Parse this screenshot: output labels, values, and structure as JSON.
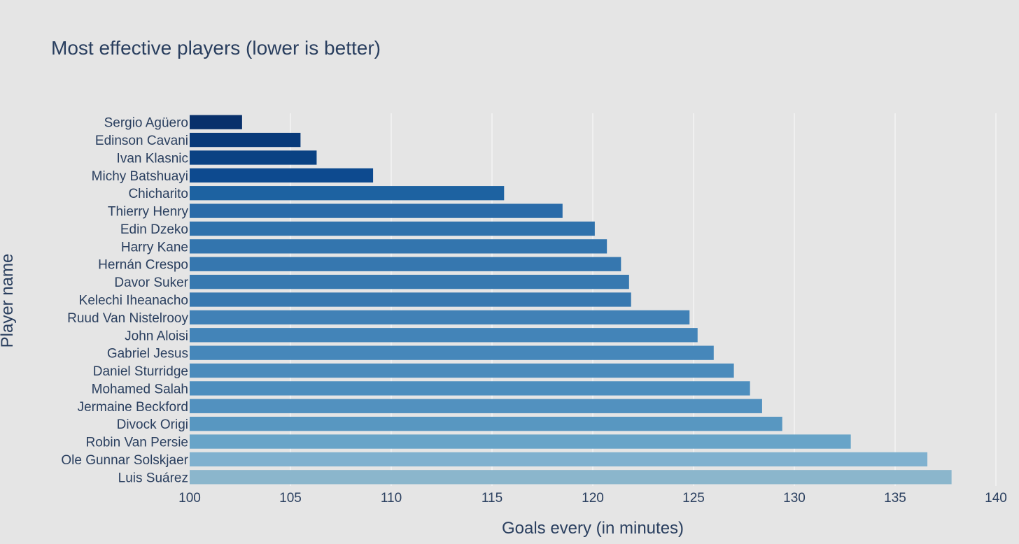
{
  "chart_data": {
    "type": "bar",
    "orientation": "horizontal",
    "title": "Most effective players (lower is better)",
    "xlabel": "Goals every (in minutes)",
    "ylabel": "Player name",
    "xlim": [
      100,
      140
    ],
    "xticks": [
      100,
      105,
      110,
      115,
      120,
      125,
      130,
      135,
      140
    ],
    "grid": true,
    "categories": [
      "Sergio Agüero",
      "Edinson Cavani",
      "Ivan Klasnic",
      "Michy Batshuayi",
      "Chicharito",
      "Thierry Henry",
      "Edin Dzeko",
      "Harry Kane",
      "Hernán Crespo",
      "Davor Suker",
      "Kelechi Iheanacho",
      "Ruud Van Nistelrooy",
      "John Aloisi",
      "Gabriel Jesus",
      "Daniel Sturridge",
      "Mohamed Salah",
      "Jermaine Beckford",
      "Divock Origi",
      "Robin Van Persie",
      "Ole Gunnar Solskjaer",
      "Luis Suárez"
    ],
    "values": [
      102.6,
      105.5,
      106.3,
      109.1,
      115.6,
      118.5,
      120.1,
      120.7,
      121.4,
      121.8,
      121.9,
      124.8,
      125.2,
      126.0,
      127.0,
      127.8,
      128.4,
      129.4,
      132.8,
      136.6,
      137.8
    ],
    "colors": [
      "#08306b",
      "#083a7a",
      "#0a4283",
      "#0d4a8f",
      "#1d62a1",
      "#2a6ba9",
      "#3072ac",
      "#3375ae",
      "#3677af",
      "#3879b0",
      "#3879b0",
      "#4181b6",
      "#4384b8",
      "#4687ba",
      "#4a8bbc",
      "#4d8ebe",
      "#5291bf",
      "#5897c1",
      "#68a4c8",
      "#80b1cf",
      "#8bb6cc"
    ],
    "background": "#e5e5e5"
  }
}
